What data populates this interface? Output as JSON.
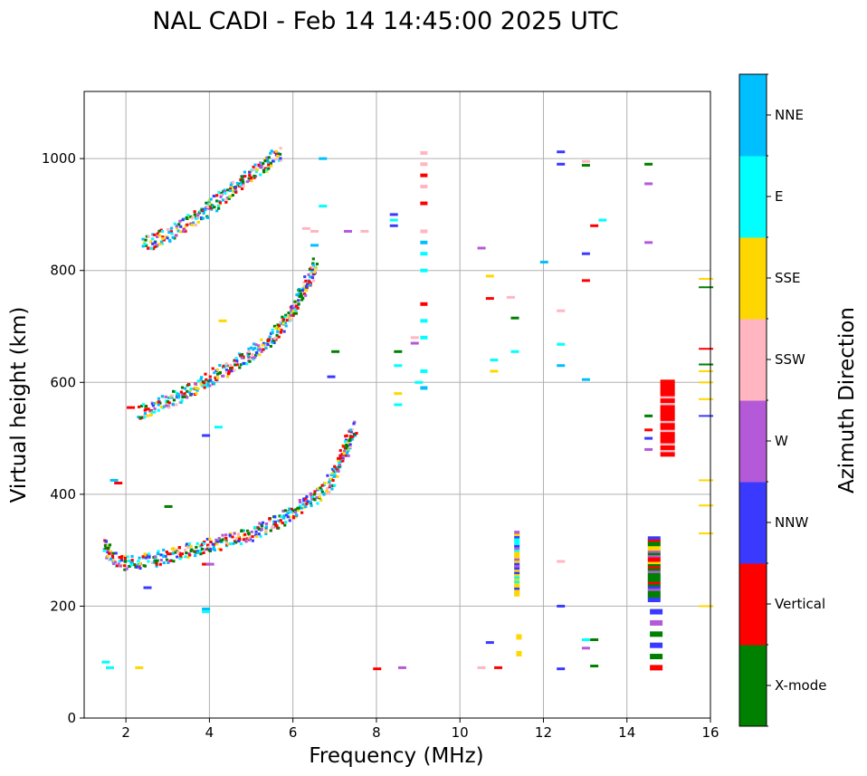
{
  "chart_data": {
    "type": "scatter",
    "title": "NAL CADI - Feb 14 14:45:00 2025 UTC",
    "xlabel": "Frequency (MHz)",
    "ylabel": "Virtual height (km)",
    "xlim": [
      1,
      16
    ],
    "ylim": [
      0,
      1120
    ],
    "xticks": [
      "2",
      "4",
      "6",
      "8",
      "10",
      "12",
      "14",
      "16"
    ],
    "yticks": [
      "0",
      "200",
      "400",
      "600",
      "800",
      "1000"
    ],
    "grid": true,
    "colorbar": {
      "label": "Azimuth Direction",
      "categories": [
        {
          "name": "X-mode",
          "color": "#008000"
        },
        {
          "name": "Vertical",
          "color": "#ff0000"
        },
        {
          "name": "NNW",
          "color": "#3a3aff"
        },
        {
          "name": "W",
          "color": "#b45ad8"
        },
        {
          "name": "SSW",
          "color": "#ffb6c1"
        },
        {
          "name": "SSE",
          "color": "#ffd700"
        },
        {
          "name": "E",
          "color": "#00ffff"
        },
        {
          "name": "NNE",
          "color": "#00bfff"
        }
      ]
    },
    "traces": [
      {
        "name": "1F trace",
        "points": [
          [
            1.45,
            310
          ],
          [
            1.55,
            295
          ],
          [
            1.65,
            285
          ],
          [
            1.8,
            280
          ],
          [
            2.0,
            278
          ],
          [
            2.3,
            280
          ],
          [
            2.6,
            283
          ],
          [
            3.0,
            290
          ],
          [
            3.4,
            298
          ],
          [
            3.8,
            305
          ],
          [
            4.2,
            312
          ],
          [
            4.6,
            320
          ],
          [
            5.0,
            330
          ],
          [
            5.3,
            340
          ],
          [
            5.6,
            352
          ],
          [
            5.9,
            365
          ],
          [
            6.2,
            380
          ],
          [
            6.5,
            395
          ],
          [
            6.8,
            415
          ],
          [
            7.0,
            440
          ],
          [
            7.15,
            465
          ],
          [
            7.3,
            495
          ],
          [
            7.45,
            520
          ]
        ]
      },
      {
        "name": "2F trace",
        "points": [
          [
            2.3,
            545
          ],
          [
            2.6,
            555
          ],
          [
            2.9,
            565
          ],
          [
            3.2,
            575
          ],
          [
            3.5,
            585
          ],
          [
            3.8,
            598
          ],
          [
            4.1,
            612
          ],
          [
            4.4,
            625
          ],
          [
            4.7,
            638
          ],
          [
            5.0,
            652
          ],
          [
            5.3,
            670
          ],
          [
            5.6,
            690
          ],
          [
            5.8,
            710
          ],
          [
            6.0,
            735
          ],
          [
            6.2,
            760
          ],
          [
            6.4,
            790
          ],
          [
            6.5,
            815
          ]
        ]
      },
      {
        "name": "3F trace",
        "points": [
          [
            2.4,
            845
          ],
          [
            2.7,
            855
          ],
          [
            3.0,
            865
          ],
          [
            3.3,
            878
          ],
          [
            3.6,
            892
          ],
          [
            3.9,
            908
          ],
          [
            4.2,
            925
          ],
          [
            4.5,
            945
          ],
          [
            4.8,
            962
          ],
          [
            5.1,
            978
          ],
          [
            5.4,
            995
          ],
          [
            5.7,
            1012
          ]
        ]
      },
      {
        "name": "Red column 14.9 MHz",
        "points": [
          [
            14.9,
            470
          ],
          [
            14.9,
            490
          ],
          [
            14.9,
            510
          ],
          [
            14.9,
            530
          ],
          [
            14.9,
            550
          ],
          [
            14.9,
            570
          ],
          [
            14.9,
            590
          ],
          [
            14.9,
            605
          ]
        ]
      },
      {
        "name": "X-mode column 14.6 MHz",
        "points": [
          [
            14.6,
            90
          ],
          [
            14.6,
            110
          ],
          [
            14.6,
            130
          ],
          [
            14.6,
            150
          ],
          [
            14.6,
            170
          ],
          [
            14.6,
            190
          ],
          [
            14.6,
            210
          ],
          [
            14.6,
            230
          ],
          [
            14.6,
            250
          ],
          [
            14.6,
            270
          ],
          [
            14.6,
            290
          ],
          [
            14.6,
            310
          ],
          [
            14.6,
            325
          ]
        ]
      },
      {
        "name": "Yellow column 11.4 MHz",
        "points": [
          [
            11.4,
            220
          ],
          [
            11.4,
            240
          ],
          [
            11.4,
            260
          ],
          [
            11.4,
            280
          ],
          [
            11.4,
            300
          ],
          [
            11.4,
            320
          ],
          [
            11.4,
            335
          ],
          [
            11.4,
            115
          ],
          [
            11.4,
            145
          ]
        ]
      },
      {
        "name": "Cyan column 9.1 MHz",
        "points": [
          [
            9.1,
            590
          ],
          [
            9.1,
            620
          ],
          [
            9.1,
            680
          ],
          [
            9.1,
            710
          ],
          [
            9.1,
            740
          ],
          [
            9.1,
            800
          ],
          [
            9.1,
            830
          ],
          [
            9.1,
            850
          ],
          [
            9.1,
            870
          ],
          [
            9.1,
            920
          ],
          [
            9.1,
            950
          ],
          [
            9.1,
            970
          ],
          [
            9.1,
            990
          ],
          [
            9.1,
            1010
          ]
        ]
      },
      {
        "name": "Edge column 15.8 MHz",
        "points": [
          [
            15.8,
            200
          ],
          [
            15.8,
            330
          ],
          [
            15.8,
            380
          ],
          [
            15.8,
            425
          ],
          [
            15.8,
            540
          ],
          [
            15.8,
            570
          ],
          [
            15.8,
            600
          ],
          [
            15.8,
            620
          ],
          [
            15.8,
            632
          ],
          [
            15.8,
            660
          ],
          [
            15.8,
            770
          ],
          [
            15.8,
            785
          ]
        ]
      },
      {
        "name": "Scattered echoes",
        "points": [
          [
            8.5,
            560
          ],
          [
            8.5,
            580
          ],
          [
            8.5,
            630
          ],
          [
            8.5,
            655
          ],
          [
            8.4,
            880
          ],
          [
            8.4,
            890
          ],
          [
            8.4,
            900
          ],
          [
            8.9,
            670
          ],
          [
            8.9,
            680
          ],
          [
            9.0,
            600
          ],
          [
            10.5,
            90
          ],
          [
            10.7,
            135
          ],
          [
            10.5,
            840
          ],
          [
            10.7,
            790
          ],
          [
            10.7,
            750
          ],
          [
            10.8,
            620
          ],
          [
            10.8,
            640
          ],
          [
            11.2,
            752
          ],
          [
            11.3,
            655
          ],
          [
            11.3,
            715
          ],
          [
            12.0,
            815
          ],
          [
            12.4,
            1012
          ],
          [
            12.4,
            990
          ],
          [
            12.4,
            728
          ],
          [
            12.4,
            668
          ],
          [
            12.4,
            630
          ],
          [
            12.4,
            280
          ],
          [
            12.4,
            200
          ],
          [
            12.4,
            88
          ],
          [
            13.0,
            995
          ],
          [
            13.0,
            988
          ],
          [
            13.0,
            830
          ],
          [
            13.0,
            782
          ],
          [
            13.0,
            605
          ],
          [
            13.0,
            140
          ],
          [
            13.0,
            125
          ],
          [
            13.2,
            880
          ],
          [
            13.4,
            890
          ],
          [
            13.2,
            140
          ],
          [
            13.2,
            93
          ],
          [
            14.5,
            990
          ],
          [
            14.5,
            955
          ],
          [
            14.5,
            850
          ],
          [
            14.5,
            540
          ],
          [
            14.5,
            515
          ],
          [
            14.5,
            500
          ],
          [
            14.5,
            480
          ],
          [
            6.5,
            845
          ],
          [
            6.5,
            870
          ],
          [
            6.3,
            875
          ],
          [
            6.7,
            915
          ],
          [
            7.7,
            870
          ],
          [
            7.3,
            870
          ],
          [
            6.7,
            1000
          ],
          [
            7.0,
            655
          ],
          [
            6.9,
            610
          ],
          [
            4.2,
            520
          ],
          [
            3.9,
            505
          ],
          [
            4.3,
            710
          ],
          [
            3.0,
            378
          ],
          [
            3.9,
            275
          ],
          [
            4.0,
            275
          ],
          [
            3.9,
            195
          ],
          [
            3.9,
            190
          ],
          [
            2.5,
            233
          ],
          [
            2.3,
            90
          ],
          [
            1.5,
            100
          ],
          [
            1.6,
            90
          ],
          [
            1.8,
            420
          ],
          [
            1.7,
            425
          ],
          [
            2.1,
            555
          ],
          [
            8.0,
            88
          ],
          [
            8.6,
            90
          ],
          [
            10.9,
            90
          ]
        ]
      }
    ]
  }
}
